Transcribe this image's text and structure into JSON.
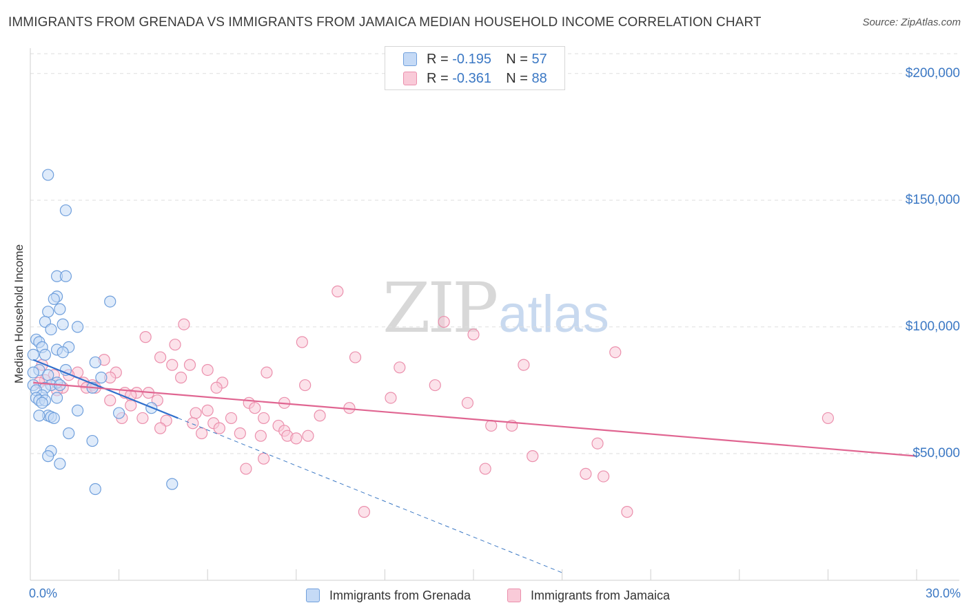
{
  "header": {
    "title": "IMMIGRANTS FROM GRENADA VS IMMIGRANTS FROM JAMAICA MEDIAN HOUSEHOLD INCOME CORRELATION CHART",
    "source": "Source: ZipAtlas.com"
  },
  "watermark": {
    "zip": "ZIP",
    "atlas": "atlas"
  },
  "legend_stats": [
    {
      "r_label": "R =",
      "r_value": "-0.195",
      "n_label": "N =",
      "n_value": "57",
      "color": "#6f9fdc"
    },
    {
      "r_label": "R =",
      "r_value": "-0.361",
      "n_label": "N =",
      "n_value": "88",
      "color": "#eb8fac"
    }
  ],
  "chart_data": {
    "type": "scatter",
    "title": "IMMIGRANTS FROM GRENADA VS IMMIGRANTS FROM JAMAICA MEDIAN HOUSEHOLD INCOME CORRELATION CHART",
    "xlabel": "",
    "ylabel": "Median Household Income",
    "xlim": [
      0,
      30
    ],
    "ylim": [
      0,
      210000
    ],
    "x_tick_labels": [
      "0.0%",
      "30.0%"
    ],
    "y_ticks": [
      {
        "value": 50000,
        "label": "$50,000"
      },
      {
        "value": 100000,
        "label": "$100,000"
      },
      {
        "value": 150000,
        "label": "$150,000"
      },
      {
        "value": 200000,
        "label": "$200,000"
      }
    ],
    "grid": true,
    "legend_position": "bottom",
    "series": [
      {
        "name": "Immigrants from Grenada",
        "color": "#6f9fdc",
        "fill": "#c5daf6",
        "trend": {
          "x_start": 0.1,
          "y_start": 87000,
          "x_end": 5.0,
          "y_end": 64000,
          "dashed_to_x": 18.0,
          "dashed_to_y": 3000
        },
        "points": [
          [
            0.6,
            160000
          ],
          [
            1.2,
            146000
          ],
          [
            0.9,
            120000
          ],
          [
            1.2,
            120000
          ],
          [
            0.9,
            112000
          ],
          [
            0.8,
            111000
          ],
          [
            2.7,
            110000
          ],
          [
            1.0,
            107000
          ],
          [
            0.6,
            106000
          ],
          [
            0.5,
            102000
          ],
          [
            1.1,
            101000
          ],
          [
            1.6,
            100000
          ],
          [
            0.7,
            99000
          ],
          [
            0.2,
            95000
          ],
          [
            0.3,
            94000
          ],
          [
            0.4,
            92000
          ],
          [
            1.3,
            92000
          ],
          [
            0.9,
            91000
          ],
          [
            1.1,
            90000
          ],
          [
            0.1,
            89000
          ],
          [
            0.5,
            89000
          ],
          [
            2.2,
            86000
          ],
          [
            0.3,
            83000
          ],
          [
            1.2,
            83000
          ],
          [
            0.1,
            82000
          ],
          [
            0.6,
            81000
          ],
          [
            2.4,
            80000
          ],
          [
            0.9,
            78000
          ],
          [
            0.1,
            77000
          ],
          [
            0.7,
            77000
          ],
          [
            1.0,
            77000
          ],
          [
            0.5,
            76000
          ],
          [
            0.2,
            75000
          ],
          [
            2.1,
            76000
          ],
          [
            0.4,
            73000
          ],
          [
            0.2,
            72000
          ],
          [
            0.9,
            72000
          ],
          [
            0.3,
            71000
          ],
          [
            0.5,
            71000
          ],
          [
            0.4,
            70000
          ],
          [
            4.1,
            68000
          ],
          [
            1.6,
            67000
          ],
          [
            3.0,
            66000
          ],
          [
            0.6,
            65000
          ],
          [
            0.3,
            65000
          ],
          [
            0.7,
            64500
          ],
          [
            0.8,
            64000
          ],
          [
            1.3,
            58000
          ],
          [
            2.1,
            55000
          ],
          [
            0.7,
            51000
          ],
          [
            0.6,
            49000
          ],
          [
            1.0,
            46000
          ],
          [
            4.8,
            38000
          ],
          [
            2.2,
            36000
          ]
        ]
      },
      {
        "name": "Immigrants from Jamaica",
        "color": "#eb8fac",
        "fill": "#f9cad8",
        "trend": {
          "x_start": 0.1,
          "y_start": 78000,
          "x_end": 30.0,
          "y_end": 49000
        },
        "points": [
          [
            10.4,
            114000
          ],
          [
            14.0,
            102000
          ],
          [
            5.2,
            101000
          ],
          [
            15.0,
            97000
          ],
          [
            3.9,
            96000
          ],
          [
            9.2,
            94000
          ],
          [
            4.9,
            93000
          ],
          [
            19.8,
            90000
          ],
          [
            4.4,
            88000
          ],
          [
            2.5,
            87000
          ],
          [
            11.0,
            88000
          ],
          [
            0.4,
            85000
          ],
          [
            5.4,
            85000
          ],
          [
            4.8,
            85000
          ],
          [
            16.7,
            85000
          ],
          [
            12.5,
            84000
          ],
          [
            6.0,
            83000
          ],
          [
            8.0,
            82000
          ],
          [
            2.9,
            82000
          ],
          [
            1.6,
            82000
          ],
          [
            1.3,
            81000
          ],
          [
            0.8,
            81000
          ],
          [
            2.7,
            80000
          ],
          [
            5.1,
            80000
          ],
          [
            0.5,
            79000
          ],
          [
            0.3,
            78000
          ],
          [
            1.8,
            78000
          ],
          [
            2.1,
            77000
          ],
          [
            6.5,
            78000
          ],
          [
            9.3,
            77000
          ],
          [
            13.7,
            77000
          ],
          [
            1.1,
            76000
          ],
          [
            1.9,
            76000
          ],
          [
            2.2,
            76000
          ],
          [
            6.3,
            76000
          ],
          [
            0.9,
            75000
          ],
          [
            3.2,
            74000
          ],
          [
            3.6,
            74000
          ],
          [
            4.0,
            74000
          ],
          [
            3.4,
            73000
          ],
          [
            12.2,
            72000
          ],
          [
            4.3,
            71000
          ],
          [
            2.7,
            71000
          ],
          [
            8.6,
            70000
          ],
          [
            7.4,
            70000
          ],
          [
            14.8,
            70000
          ],
          [
            3.4,
            69000
          ],
          [
            7.6,
            68000
          ],
          [
            10.8,
            68000
          ],
          [
            5.6,
            66000
          ],
          [
            6.0,
            67000
          ],
          [
            3.8,
            64000
          ],
          [
            3.1,
            64000
          ],
          [
            9.8,
            65000
          ],
          [
            4.6,
            63000
          ],
          [
            6.8,
            64000
          ],
          [
            7.9,
            64000
          ],
          [
            27.0,
            64000
          ],
          [
            5.5,
            62000
          ],
          [
            6.2,
            62000
          ],
          [
            8.4,
            61000
          ],
          [
            15.6,
            61000
          ],
          [
            16.3,
            61000
          ],
          [
            4.4,
            60000
          ],
          [
            6.4,
            60000
          ],
          [
            8.6,
            59000
          ],
          [
            7.1,
            58000
          ],
          [
            5.8,
            58000
          ],
          [
            7.8,
            57000
          ],
          [
            8.7,
            57000
          ],
          [
            9.4,
            57000
          ],
          [
            9.0,
            56000
          ],
          [
            19.2,
            54000
          ],
          [
            17.0,
            49000
          ],
          [
            7.9,
            48000
          ],
          [
            7.3,
            44000
          ],
          [
            15.4,
            44000
          ],
          [
            18.8,
            42000
          ],
          [
            19.4,
            41000
          ],
          [
            11.3,
            27000
          ],
          [
            20.2,
            27000
          ]
        ]
      }
    ]
  },
  "legend_bottom": [
    {
      "label": "Immigrants from Grenada"
    },
    {
      "label": "Immigrants from Jamaica"
    }
  ]
}
